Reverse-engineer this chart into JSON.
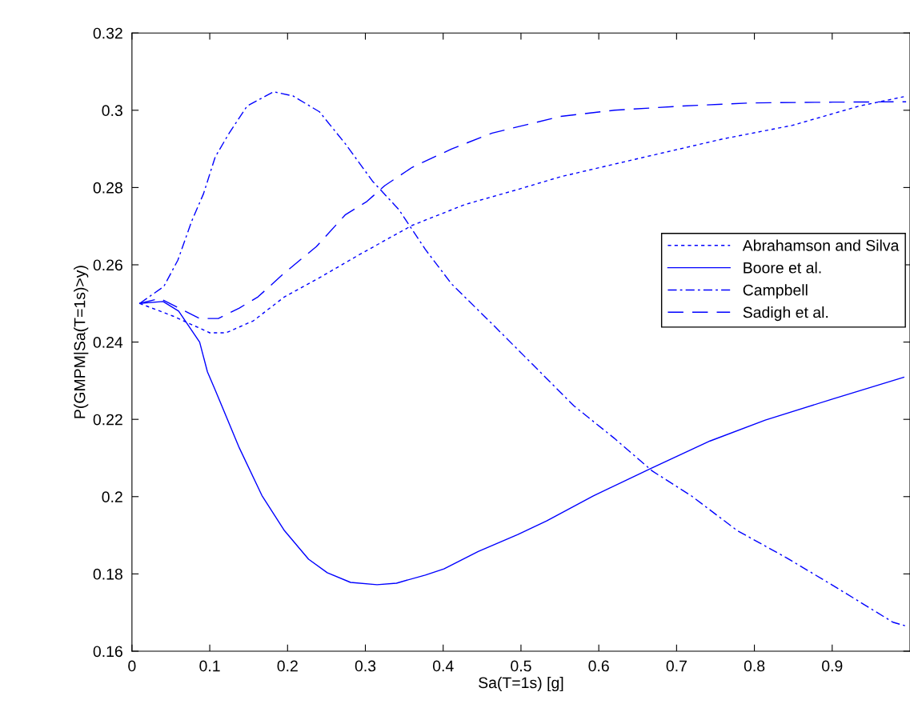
{
  "chart_data": {
    "type": "line",
    "xlabel": "Sa(T=1s) [g]",
    "ylabel": "P(GMPM|Sa(T=1s)>y)",
    "xlim": [
      0,
      1
    ],
    "xticks": [
      0,
      0.1,
      0.2,
      0.3,
      0.4,
      0.5,
      0.6,
      0.7,
      0.8,
      0.9
    ],
    "ylim": [
      0.16,
      0.32
    ],
    "yticks": [
      0.16,
      0.18,
      0.2,
      0.22,
      0.24,
      0.26,
      0.28,
      0.3,
      0.32
    ],
    "grid": false,
    "legend": "right",
    "marker": "none",
    "series": [
      {
        "name": "Abrahamson and Silva",
        "color": "#0000ff",
        "line_style": "dotted",
        "x": [
          0.01,
          0.053,
          0.1,
          0.121,
          0.156,
          0.196,
          0.244,
          0.292,
          0.36,
          0.428,
          0.496,
          0.551,
          0.655,
          0.76,
          0.849,
          0.935,
          0.992
        ],
        "values": [
          0.25,
          0.2467,
          0.2424,
          0.2424,
          0.2455,
          0.2517,
          0.257,
          0.2626,
          0.2702,
          0.2756,
          0.2795,
          0.2828,
          0.2877,
          0.2926,
          0.2961,
          0.3011,
          0.3035
        ]
      },
      {
        "name": "Boore et al.",
        "color": "#0000ff",
        "line_style": "solid",
        "x": [
          0.01,
          0.04,
          0.06,
          0.087,
          0.097,
          0.107,
          0.138,
          0.167,
          0.196,
          0.227,
          0.251,
          0.281,
          0.315,
          0.34,
          0.377,
          0.401,
          0.445,
          0.496,
          0.533,
          0.593,
          0.669,
          0.743,
          0.814,
          0.901,
          0.992
        ],
        "values": [
          0.25,
          0.2505,
          0.248,
          0.24,
          0.2323,
          0.2276,
          0.2126,
          0.2003,
          0.1912,
          0.1838,
          0.1803,
          0.1778,
          0.1772,
          0.1776,
          0.1797,
          0.1813,
          0.1858,
          0.1902,
          0.1937,
          0.2002,
          0.2075,
          0.2144,
          0.2198,
          0.2253,
          0.2309
        ]
      },
      {
        "name": "Campbell",
        "color": "#0000ff",
        "line_style": "dashdot",
        "x": [
          0.01,
          0.041,
          0.059,
          0.077,
          0.092,
          0.107,
          0.125,
          0.148,
          0.182,
          0.207,
          0.241,
          0.274,
          0.309,
          0.343,
          0.377,
          0.411,
          0.463,
          0.515,
          0.568,
          0.62,
          0.669,
          0.719,
          0.778,
          0.841,
          0.901,
          0.978,
          0.995
        ],
        "values": [
          0.25,
          0.2544,
          0.2612,
          0.2714,
          0.2784,
          0.2879,
          0.2941,
          0.3011,
          0.3048,
          0.3037,
          0.2996,
          0.2914,
          0.2817,
          0.2743,
          0.264,
          0.255,
          0.2447,
          0.2342,
          0.2235,
          0.2151,
          0.2066,
          0.2002,
          0.1912,
          0.1842,
          0.177,
          0.1675,
          0.1665
        ]
      },
      {
        "name": "Sadigh et al.",
        "color": "#0000ff",
        "line_style": "longdash",
        "x": [
          0.01,
          0.036,
          0.087,
          0.111,
          0.138,
          0.162,
          0.196,
          0.237,
          0.274,
          0.302,
          0.325,
          0.36,
          0.411,
          0.463,
          0.551,
          0.62,
          0.708,
          0.795,
          0.901,
          0.995
        ],
        "values": [
          0.25,
          0.2513,
          0.2461,
          0.2461,
          0.2488,
          0.2517,
          0.2579,
          0.2647,
          0.2729,
          0.2764,
          0.2805,
          0.2852,
          0.29,
          0.2941,
          0.2984,
          0.3,
          0.3011,
          0.3019,
          0.3021,
          0.3022
        ]
      }
    ]
  }
}
